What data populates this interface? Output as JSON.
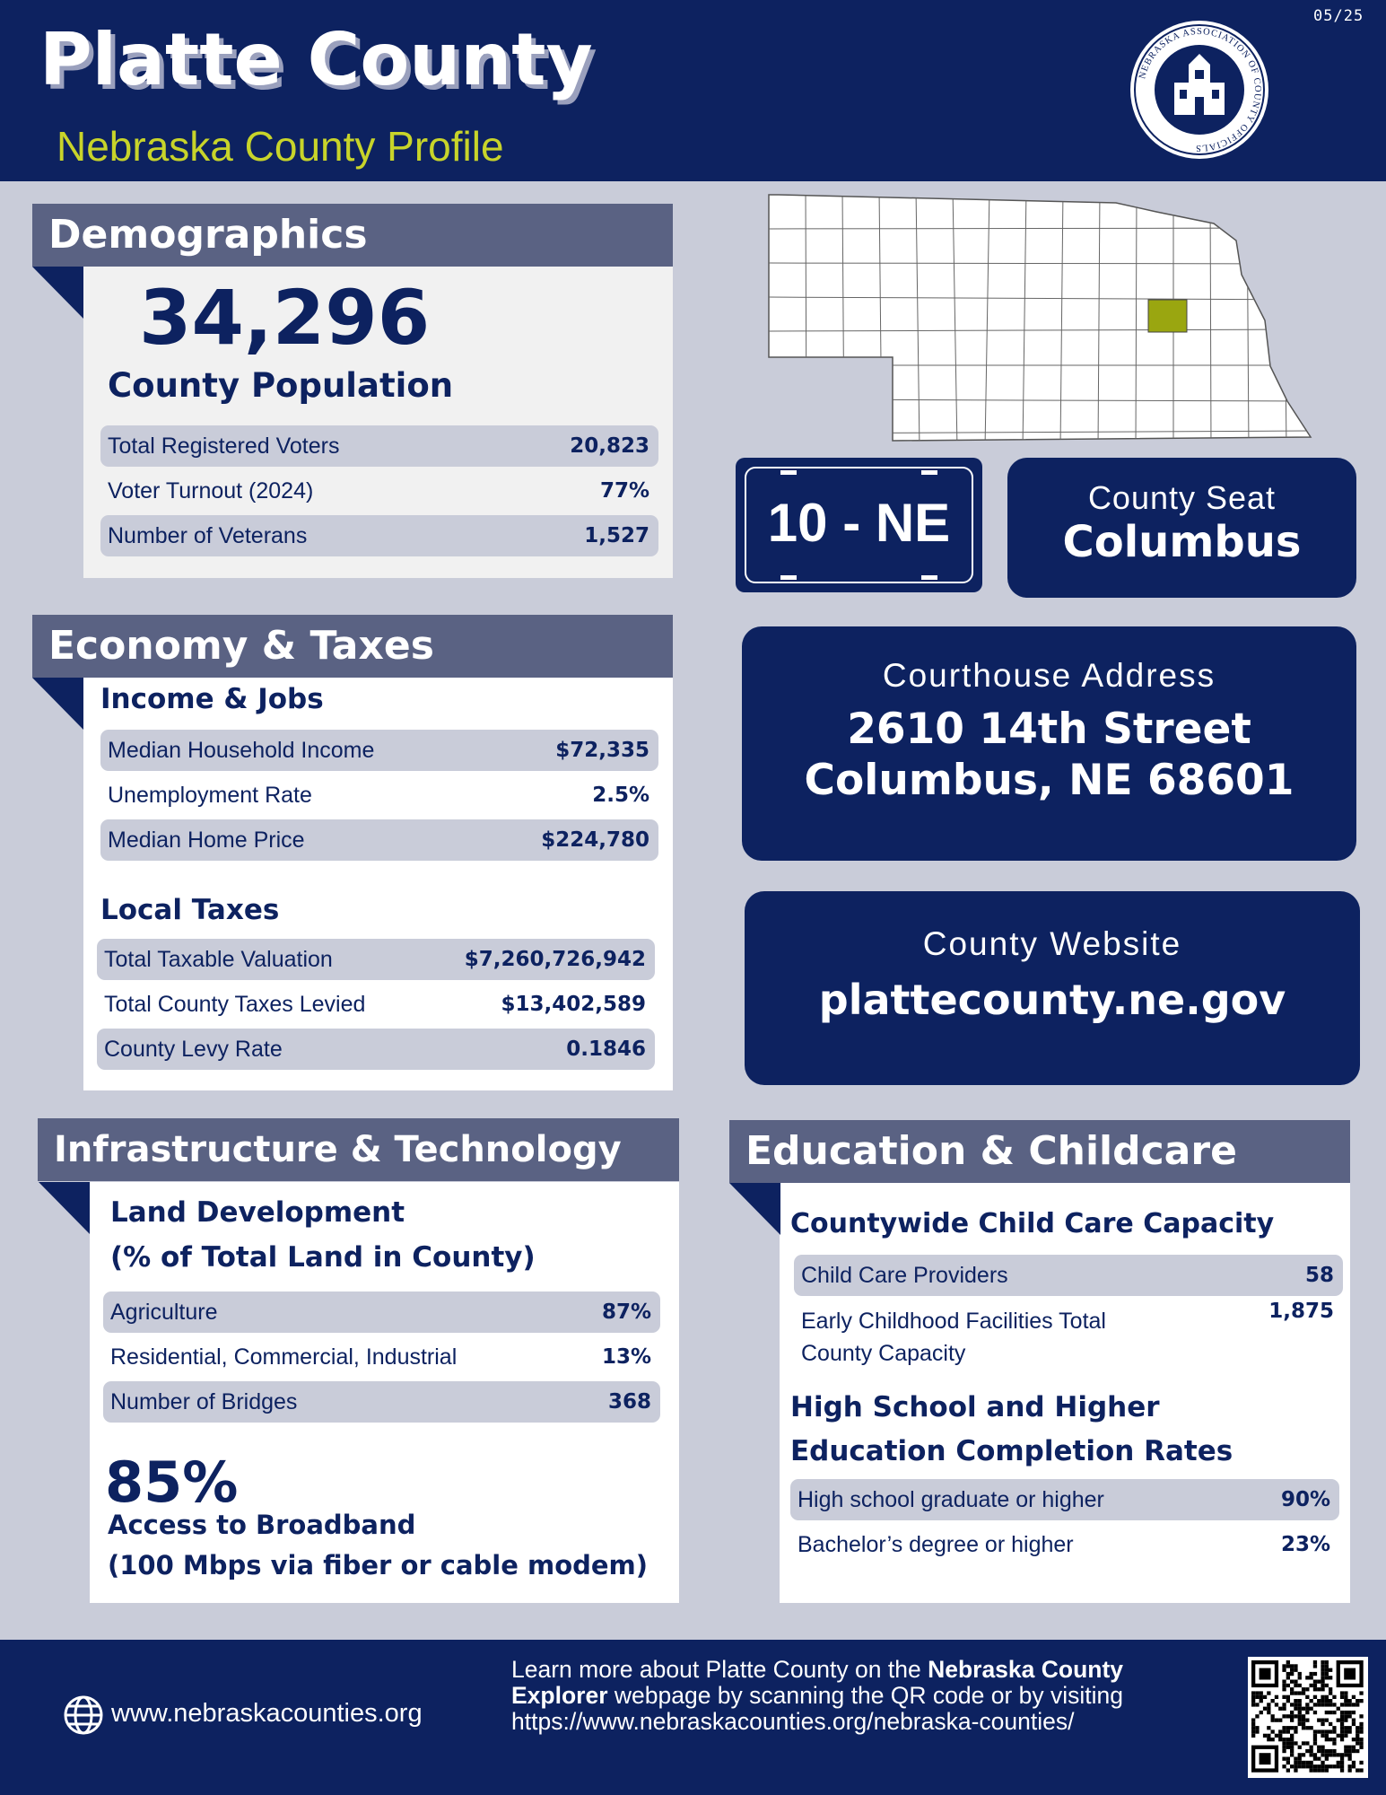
{
  "header": {
    "date": "05/25",
    "title": "Platte County",
    "subtitle": "Nebraska County Profile",
    "logo_text": "NEBRASKA ASSOCIATION OF COUNTY OFFICIALS"
  },
  "demographics": {
    "heading": "Demographics",
    "population": "34,296",
    "population_label": "County Population",
    "rows": [
      [
        "Total Registered Voters",
        "20,823"
      ],
      [
        "Voter Turnout (2024)",
        "77%"
      ],
      [
        "Number of Veterans",
        "1,527"
      ]
    ]
  },
  "county_info": {
    "district": "10 - NE",
    "seat_label": "County Seat",
    "seat": "Columbus",
    "address_label": "Courthouse Address",
    "address_lines": [
      "2610 14th Street",
      "Columbus, NE 68601"
    ],
    "website_label": "County Website",
    "website": "plattecounty.ne.gov"
  },
  "economy": {
    "heading": "Economy & Taxes",
    "income_heading": "Income & Jobs",
    "income_rows": [
      [
        "Median Household Income",
        "$72,335"
      ],
      [
        "Unemployment Rate",
        "2.5%"
      ],
      [
        "Median Home Price",
        "$224,780"
      ]
    ],
    "taxes_heading": "Local Taxes",
    "tax_rows": [
      [
        "Total Taxable Valuation",
        "$7,260,726,942"
      ],
      [
        "Total County Taxes Levied",
        "$13,402,589"
      ],
      [
        "County Levy Rate",
        "0.1846"
      ]
    ]
  },
  "infrastructure": {
    "heading": "Infrastructure & Technology",
    "land_heading_lines": [
      "Land Development",
      "(% of Total Land in County)"
    ],
    "rows": [
      [
        "Agriculture",
        "87%"
      ],
      [
        "Residential, Commercial, Industrial",
        "13%"
      ],
      [
        "Number of Bridges",
        "368"
      ]
    ],
    "broadband_value": "85%",
    "broadband_label_lines": [
      "Access to Broadband",
      "(100 Mbps via fiber or cable modem)"
    ]
  },
  "education": {
    "heading": "Education & Childcare",
    "childcare_heading": "Countywide Child Care Capacity",
    "childcare_rows": [
      [
        "Child Care Providers",
        "58"
      ],
      [
        "Early Childhood Facilities Total County Capacity",
        "1,875"
      ]
    ],
    "completion_heading_lines": [
      "High School and Higher",
      "Education Completion Rates"
    ],
    "completion_rows": [
      [
        "High school graduate or higher",
        "90%"
      ],
      [
        "Bachelor’s degree or higher",
        "23%"
      ]
    ]
  },
  "footer": {
    "site": "www.nebraskacounties.org",
    "note": [
      "Learn more about Platte County on the ",
      "Nebraska County Explorer",
      " webpage by scanning the QR code or by visiting https://www.nebraskacounties.org/nebraska-counties/"
    ]
  }
}
